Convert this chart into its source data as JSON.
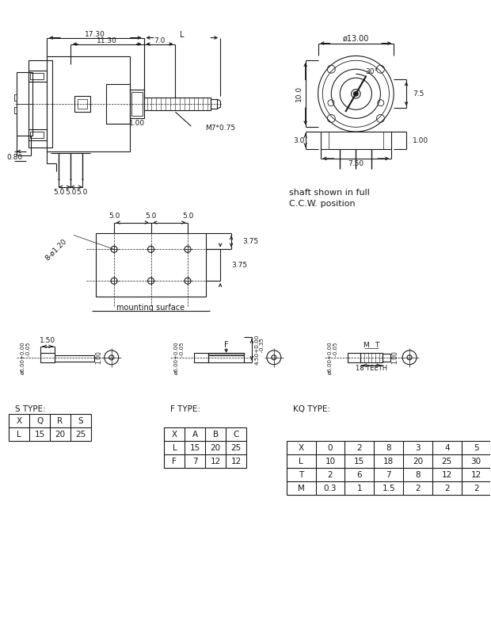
{
  "bg_color": "#ffffff",
  "lc": "#1a1a1a",
  "lw": 0.8,
  "s_type_label": "S TYPE:",
  "f_type_label": "F TYPE:",
  "kq_type_label": "KQ TYPE:",
  "s_table_headers": [
    "X",
    "Q",
    "R",
    "S"
  ],
  "s_table_rows": [
    [
      "L",
      "15",
      "20",
      "25"
    ]
  ],
  "f_table_headers": [
    "X",
    "A",
    "B",
    "C"
  ],
  "f_table_rows": [
    [
      "L",
      "15",
      "20",
      "25"
    ],
    [
      "F",
      "7",
      "12",
      "12"
    ]
  ],
  "kq_table_headers": [
    "X",
    "0",
    "2",
    "8",
    "3",
    "4",
    "5"
  ],
  "kq_table_rows": [
    [
      "L",
      "10",
      "15",
      "18",
      "20",
      "25",
      "30"
    ],
    [
      "T",
      "2",
      "6",
      "7",
      "8",
      "12",
      "12"
    ],
    [
      "M",
      "0.3",
      "1",
      "1.5",
      "2",
      "2",
      "2"
    ]
  ],
  "shaft_text_line1": "shaft shown in full",
  "shaft_text_line2": "C.C.W. position",
  "mounting_text": "mounting surface"
}
